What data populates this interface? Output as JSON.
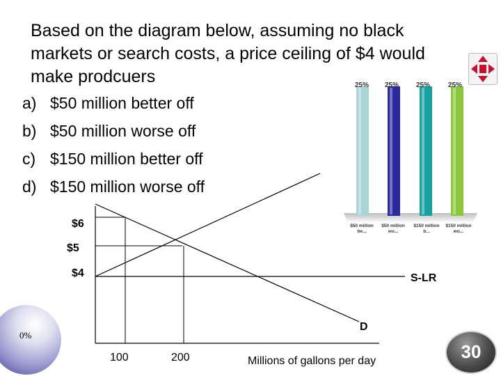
{
  "question": {
    "lines": [
      "Based on the diagram below, assuming no black",
      "markets or search costs, a price ceiling of $4 would",
      "make prodcuers"
    ]
  },
  "options": [
    {
      "letter": "a)",
      "text": "$50 million better off"
    },
    {
      "letter": "b)",
      "text": "$50 million worse off"
    },
    {
      "letter": "c)",
      "text": "$150 million better off"
    },
    {
      "letter": "d)",
      "text": "$150 million worse off"
    }
  ],
  "graph": {
    "price_labels": [
      "$6",
      "$5",
      "$4"
    ],
    "quantity_labels": [
      "100",
      "200"
    ],
    "xaxis_label": "Millions of gallons per day",
    "supply_label": "S-LR",
    "demand_label": "D"
  },
  "response_chart": {
    "type": "bar",
    "categories": [
      "$50 million be...",
      "$50 million wo...",
      "$150 million b...",
      "$150 million wo..."
    ],
    "values": [
      25,
      25,
      25,
      25
    ],
    "percent_labels": [
      "25%",
      "25%",
      "25%",
      "25%"
    ],
    "colors": [
      "#a9d4d8",
      "#2a2aa0",
      "#1aa0a0",
      "#8cc63c"
    ]
  },
  "status": {
    "response_percent": "0%",
    "timer": "30"
  },
  "icons": {
    "response_grid": "response-grid-icon",
    "sphere": "response-sphere-icon",
    "timer": "countdown-timer-icon"
  }
}
